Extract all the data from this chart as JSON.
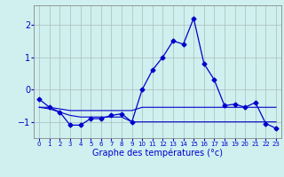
{
  "title": "Graphe des températures (°c)",
  "hours": [
    0,
    1,
    2,
    3,
    4,
    5,
    6,
    7,
    8,
    9,
    10,
    11,
    12,
    13,
    14,
    15,
    16,
    17,
    18,
    19,
    20,
    21,
    22,
    23
  ],
  "temp_main": [
    -0.3,
    -0.55,
    -0.7,
    -1.1,
    -1.1,
    -0.9,
    -0.9,
    -0.8,
    -0.75,
    -1.0,
    0.0,
    0.6,
    1.0,
    1.5,
    1.4,
    2.2,
    0.8,
    0.3,
    -0.5,
    -0.45,
    -0.55,
    -0.4,
    -1.05,
    -1.2
  ],
  "temp_line2": [
    -0.55,
    -0.55,
    -0.6,
    -0.65,
    -0.65,
    -0.65,
    -0.65,
    -0.65,
    -0.65,
    -0.65,
    -0.55,
    -0.55,
    -0.55,
    -0.55,
    -0.55,
    -0.55,
    -0.55,
    -0.55,
    -0.55,
    -0.55,
    -0.55,
    -0.55,
    -0.55,
    -0.55
  ],
  "temp_line3": [
    -0.55,
    -0.6,
    -0.7,
    -0.8,
    -0.85,
    -0.85,
    -0.85,
    -0.85,
    -0.85,
    -1.0,
    -1.0,
    -1.0,
    -1.0,
    -1.0,
    -1.0,
    -1.0,
    -1.0,
    -1.0,
    -1.0,
    -1.0,
    -1.0,
    -1.0,
    -1.0,
    -1.0
  ],
  "ylim": [
    -1.5,
    2.6
  ],
  "yticks": [
    -1,
    0,
    1,
    2
  ],
  "bg_color": "#cff0ee",
  "line_color": "#0000cc",
  "grid_color": "#aabbbb",
  "marker": "D",
  "marker_size": 2.5,
  "xlabel_fontsize": 7,
  "ytick_fontsize": 7,
  "xtick_fontsize": 5
}
